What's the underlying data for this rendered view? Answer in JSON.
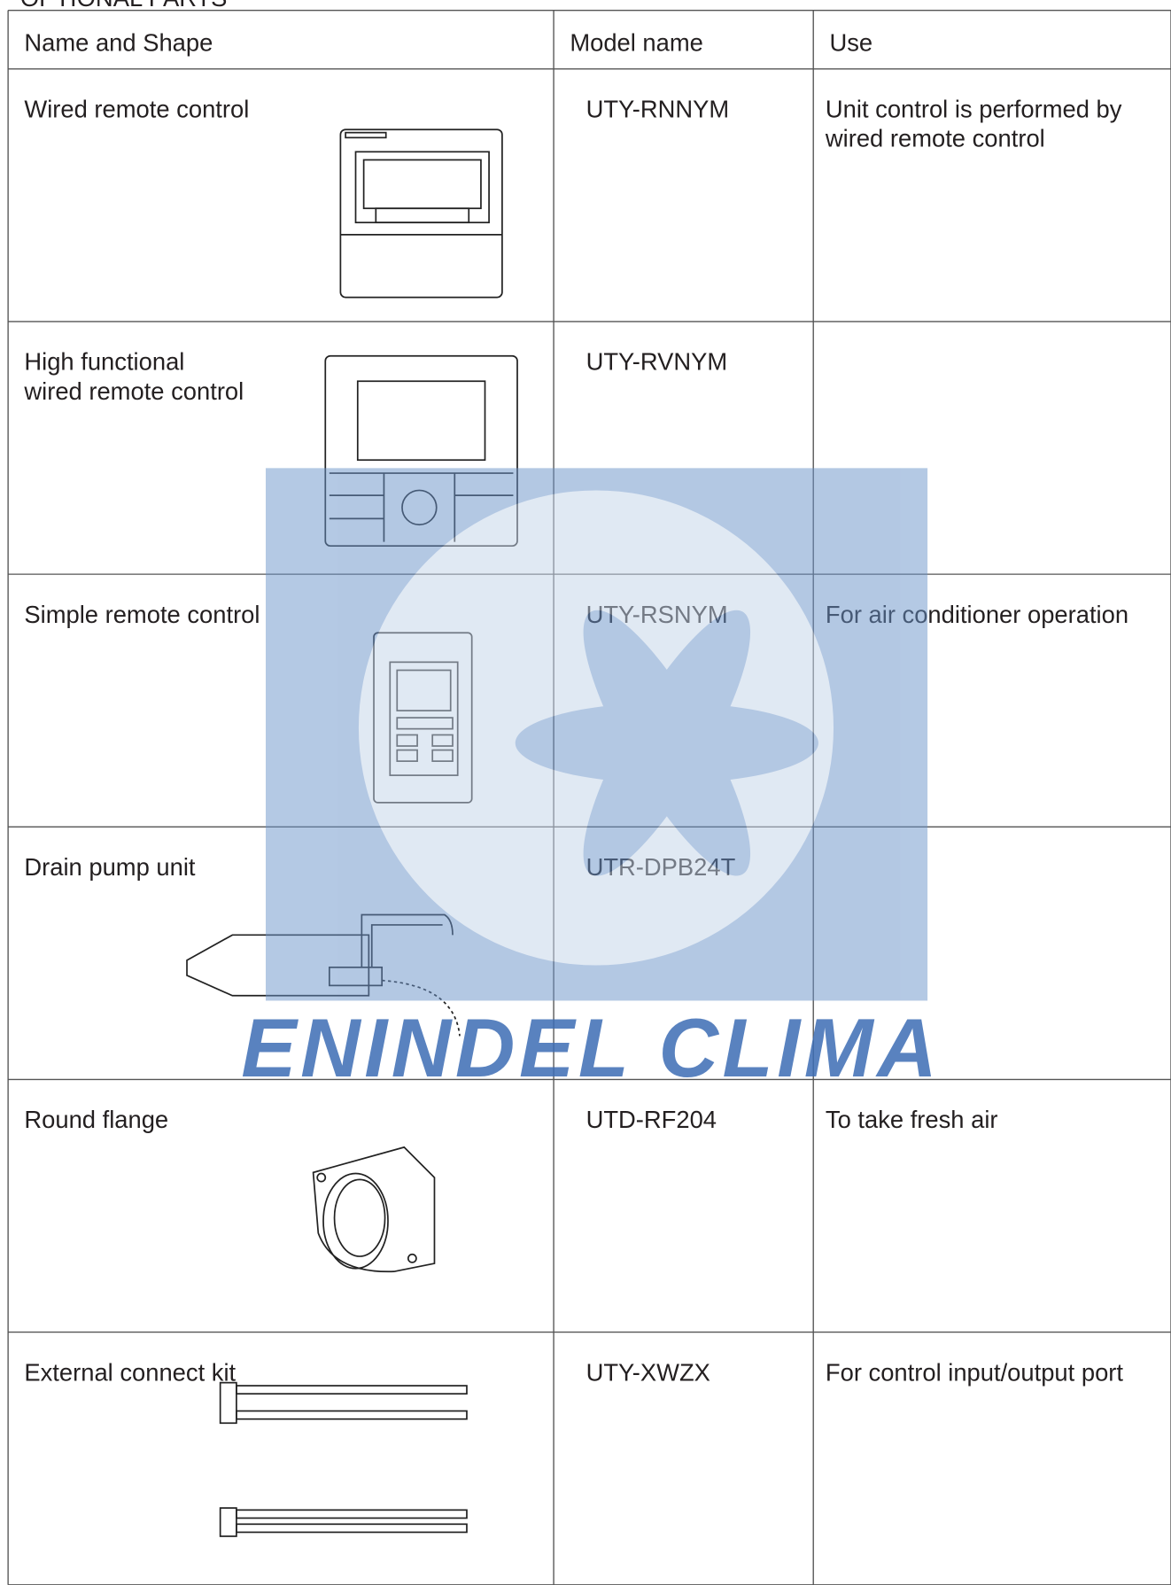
{
  "header": {
    "title": "OPTIONAL PARTS"
  },
  "table": {
    "columns": [
      "Name and Shape",
      "Model name",
      "Use"
    ],
    "rows": [
      {
        "name": [
          "Wired remote control"
        ],
        "model": "UTY-RNNYM",
        "use": [
          "Unit control is performed by",
          "wired remote control"
        ]
      },
      {
        "name": [
          "High functional",
          "wired remote control"
        ],
        "model": "UTY-RVNYM"
      },
      {
        "name": [
          "Simple remote control"
        ],
        "model": "UTY-RSNYM",
        "use": [
          "For air conditioner operation"
        ]
      },
      {
        "name": [
          "Drain pump unit"
        ],
        "model": "UTR-DPB24T"
      },
      {
        "name": [
          "Round flange"
        ],
        "model": "UTD-RF204",
        "use": [
          "To take fresh air"
        ]
      },
      {
        "name": [
          "External connect kit"
        ],
        "model": "UTY-XWZX",
        "use": [
          "For control input/output port"
        ]
      }
    ]
  },
  "watermark": {
    "text": "ENINDEL CLIMA"
  }
}
